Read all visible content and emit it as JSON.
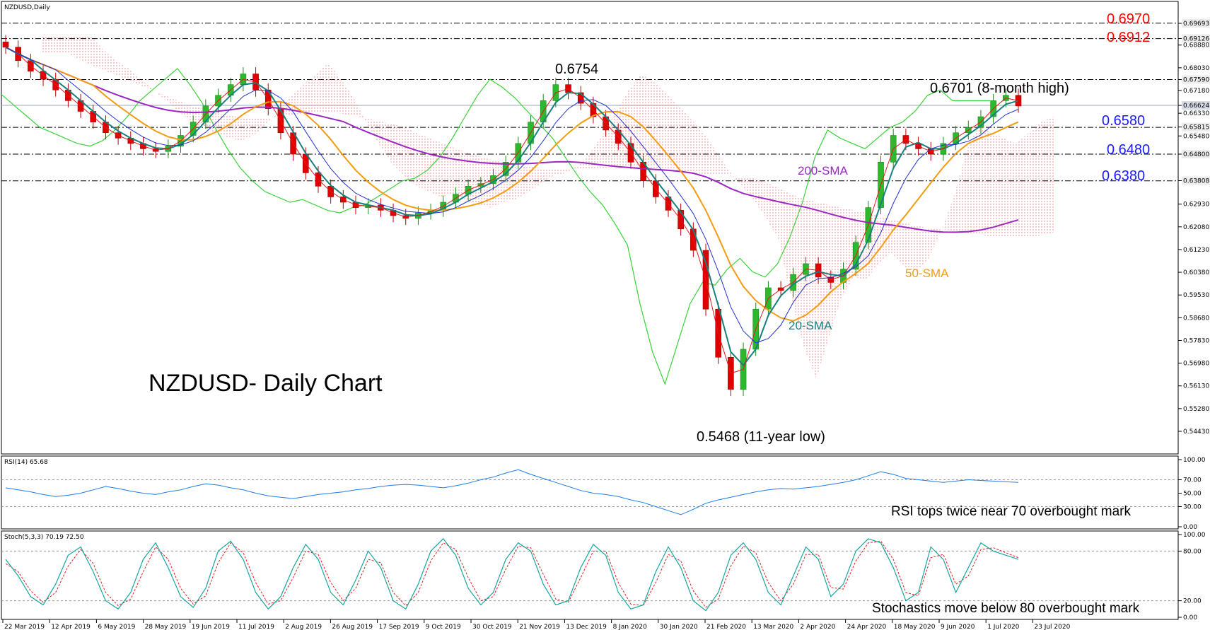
{
  "chart_data": [
    {
      "type": "candlestick",
      "symbol": "NZDUSD,Daily",
      "title": "NZDUSD- Daily Chart",
      "price_ticks": [
        "0.69693",
        "0.69126",
        "0.68880",
        "0.68030",
        "0.67590",
        "0.67180",
        "0.66624",
        "0.66330",
        "0.65815",
        "0.65480",
        "0.64800",
        "0.63808",
        "0.62930",
        "0.62080",
        "0.61230",
        "0.60380",
        "0.59530",
        "0.58680",
        "0.57830",
        "0.56980",
        "0.56130",
        "0.55280",
        "0.54430"
      ],
      "highlighted_ticks": [
        "0.69693",
        "0.69126",
        "0.67590",
        "0.66624",
        "0.65815",
        "0.64800",
        "0.63808"
      ],
      "x_labels": [
        "22 Mar 2019",
        "12 Apr 2019",
        "6 May 2019",
        "28 May 2019",
        "19 Jun 2019",
        "11 Jul 2019",
        "2 Aug 2019",
        "26 Aug 2019",
        "17 Sep 2019",
        "9 Oct 2019",
        "30 Oct 2019",
        "21 Nov 2019",
        "13 Dec 2019",
        "8 Jan 2020",
        "30 Jan 2020",
        "21 Feb 2020",
        "13 Mar 2020",
        "2 Apr 2020",
        "24 Apr 2020",
        "18 May 2020",
        "9 Jun 2020",
        "1 Jul 2020",
        "23 Jul 2020"
      ],
      "close_series": [
        0.688,
        0.683,
        0.679,
        0.676,
        0.672,
        0.668,
        0.664,
        0.66,
        0.656,
        0.654,
        0.652,
        0.65,
        0.649,
        0.651,
        0.655,
        0.66,
        0.666,
        0.67,
        0.674,
        0.678,
        0.672,
        0.665,
        0.656,
        0.648,
        0.641,
        0.636,
        0.632,
        0.63,
        0.628,
        0.629,
        0.627,
        0.625,
        0.624,
        0.626,
        0.627,
        0.63,
        0.633,
        0.636,
        0.637,
        0.64,
        0.645,
        0.652,
        0.66,
        0.668,
        0.674,
        0.671,
        0.667,
        0.662,
        0.657,
        0.652,
        0.645,
        0.638,
        0.632,
        0.627,
        0.62,
        0.612,
        0.59,
        0.572,
        0.56,
        0.575,
        0.59,
        0.598,
        0.597,
        0.603,
        0.607,
        0.602,
        0.6,
        0.605,
        0.615,
        0.628,
        0.645,
        0.655,
        0.652,
        0.65,
        0.648,
        0.652,
        0.656,
        0.658,
        0.662,
        0.668,
        0.67,
        0.666
      ],
      "sma_labels": [
        "200-SMA",
        "50-SMA",
        "20-SMA"
      ],
      "sma_colors": {
        "200-SMA": "#9a27c2",
        "50-SMA": "#f39c12",
        "20-SMA": "#17807e"
      },
      "levels": [
        {
          "value": 0.697,
          "label": "0.6970",
          "color": "#ff0000"
        },
        {
          "value": 0.6912,
          "label": "0.6912",
          "color": "#ff0000"
        },
        {
          "value": 0.6759,
          "label": "",
          "color": "#000000"
        },
        {
          "value": 0.658,
          "label": "0.6580",
          "color": "#1a1aff"
        },
        {
          "value": 0.648,
          "label": "0.6480",
          "color": "#1a1aff"
        },
        {
          "value": 0.638,
          "label": "0.6380",
          "color": "#1a1aff"
        }
      ],
      "annotations": [
        "0.6754",
        "0.6701 (8-month high)",
        "0.5468 (11-year low)"
      ],
      "current_price": "0.66624"
    },
    {
      "type": "line",
      "title": "RSI(14) 65.68",
      "y_ticks": [
        "100.00",
        "70.00",
        "50.00",
        "30.00",
        "0.00"
      ],
      "ylim": [
        0,
        100
      ],
      "values": [
        58,
        55,
        52,
        48,
        45,
        47,
        50,
        55,
        60,
        57,
        53,
        50,
        48,
        52,
        55,
        60,
        64,
        62,
        58,
        55,
        50,
        46,
        44,
        42,
        45,
        48,
        50,
        52,
        55,
        57,
        60,
        62,
        63,
        62,
        60,
        58,
        61,
        65,
        70,
        74,
        80,
        85,
        78,
        72,
        66,
        60,
        54,
        50,
        48,
        45,
        40,
        36,
        30,
        24,
        18,
        26,
        35,
        40,
        44,
        48,
        52,
        55,
        57,
        56,
        58,
        60,
        63,
        66,
        70,
        76,
        82,
        78,
        72,
        70,
        68,
        66,
        68,
        70,
        69,
        68,
        67,
        66
      ],
      "annotation": "RSI tops twice near 70 overbought mark",
      "color": "#1e7ce8"
    },
    {
      "type": "line",
      "title": "Stoch(5,3,3) 70.19 72.50",
      "y_ticks": [
        "100.00",
        "80.00",
        "20.00",
        "0.00"
      ],
      "ylim": [
        0,
        100
      ],
      "values": [
        70,
        50,
        25,
        15,
        40,
        75,
        85,
        55,
        20,
        10,
        30,
        70,
        90,
        60,
        25,
        12,
        35,
        80,
        92,
        70,
        30,
        10,
        25,
        60,
        88,
        70,
        30,
        15,
        45,
        80,
        60,
        20,
        10,
        40,
        80,
        95,
        75,
        35,
        15,
        30,
        70,
        90,
        80,
        40,
        15,
        20,
        60,
        88,
        75,
        30,
        10,
        15,
        55,
        85,
        60,
        20,
        8,
        30,
        75,
        90,
        70,
        30,
        15,
        50,
        85,
        70,
        25,
        40,
        80,
        95,
        90,
        60,
        20,
        30,
        85,
        70,
        30,
        60,
        90,
        80,
        75,
        70
      ],
      "signal": [
        65,
        55,
        32,
        18,
        30,
        62,
        82,
        65,
        30,
        14,
        22,
        55,
        85,
        70,
        35,
        16,
        26,
        66,
        90,
        78,
        42,
        16,
        20,
        48,
        80,
        76,
        42,
        20,
        35,
        70,
        66,
        30,
        14,
        30,
        68,
        90,
        82,
        48,
        20,
        25,
        58,
        86,
        84,
        52,
        22,
        18,
        48,
        80,
        80,
        42,
        16,
        14,
        42,
        76,
        68,
        32,
        12,
        22,
        62,
        86,
        78,
        42,
        20,
        40,
        76,
        76,
        36,
        34,
        68,
        90,
        92,
        70,
        30,
        26,
        72,
        76,
        40,
        50,
        82,
        84,
        78,
        72
      ],
      "annotation": "Stochastics move below 80 overbought mark",
      "k_color": "#16a6a0",
      "d_color": "#e02020"
    }
  ]
}
